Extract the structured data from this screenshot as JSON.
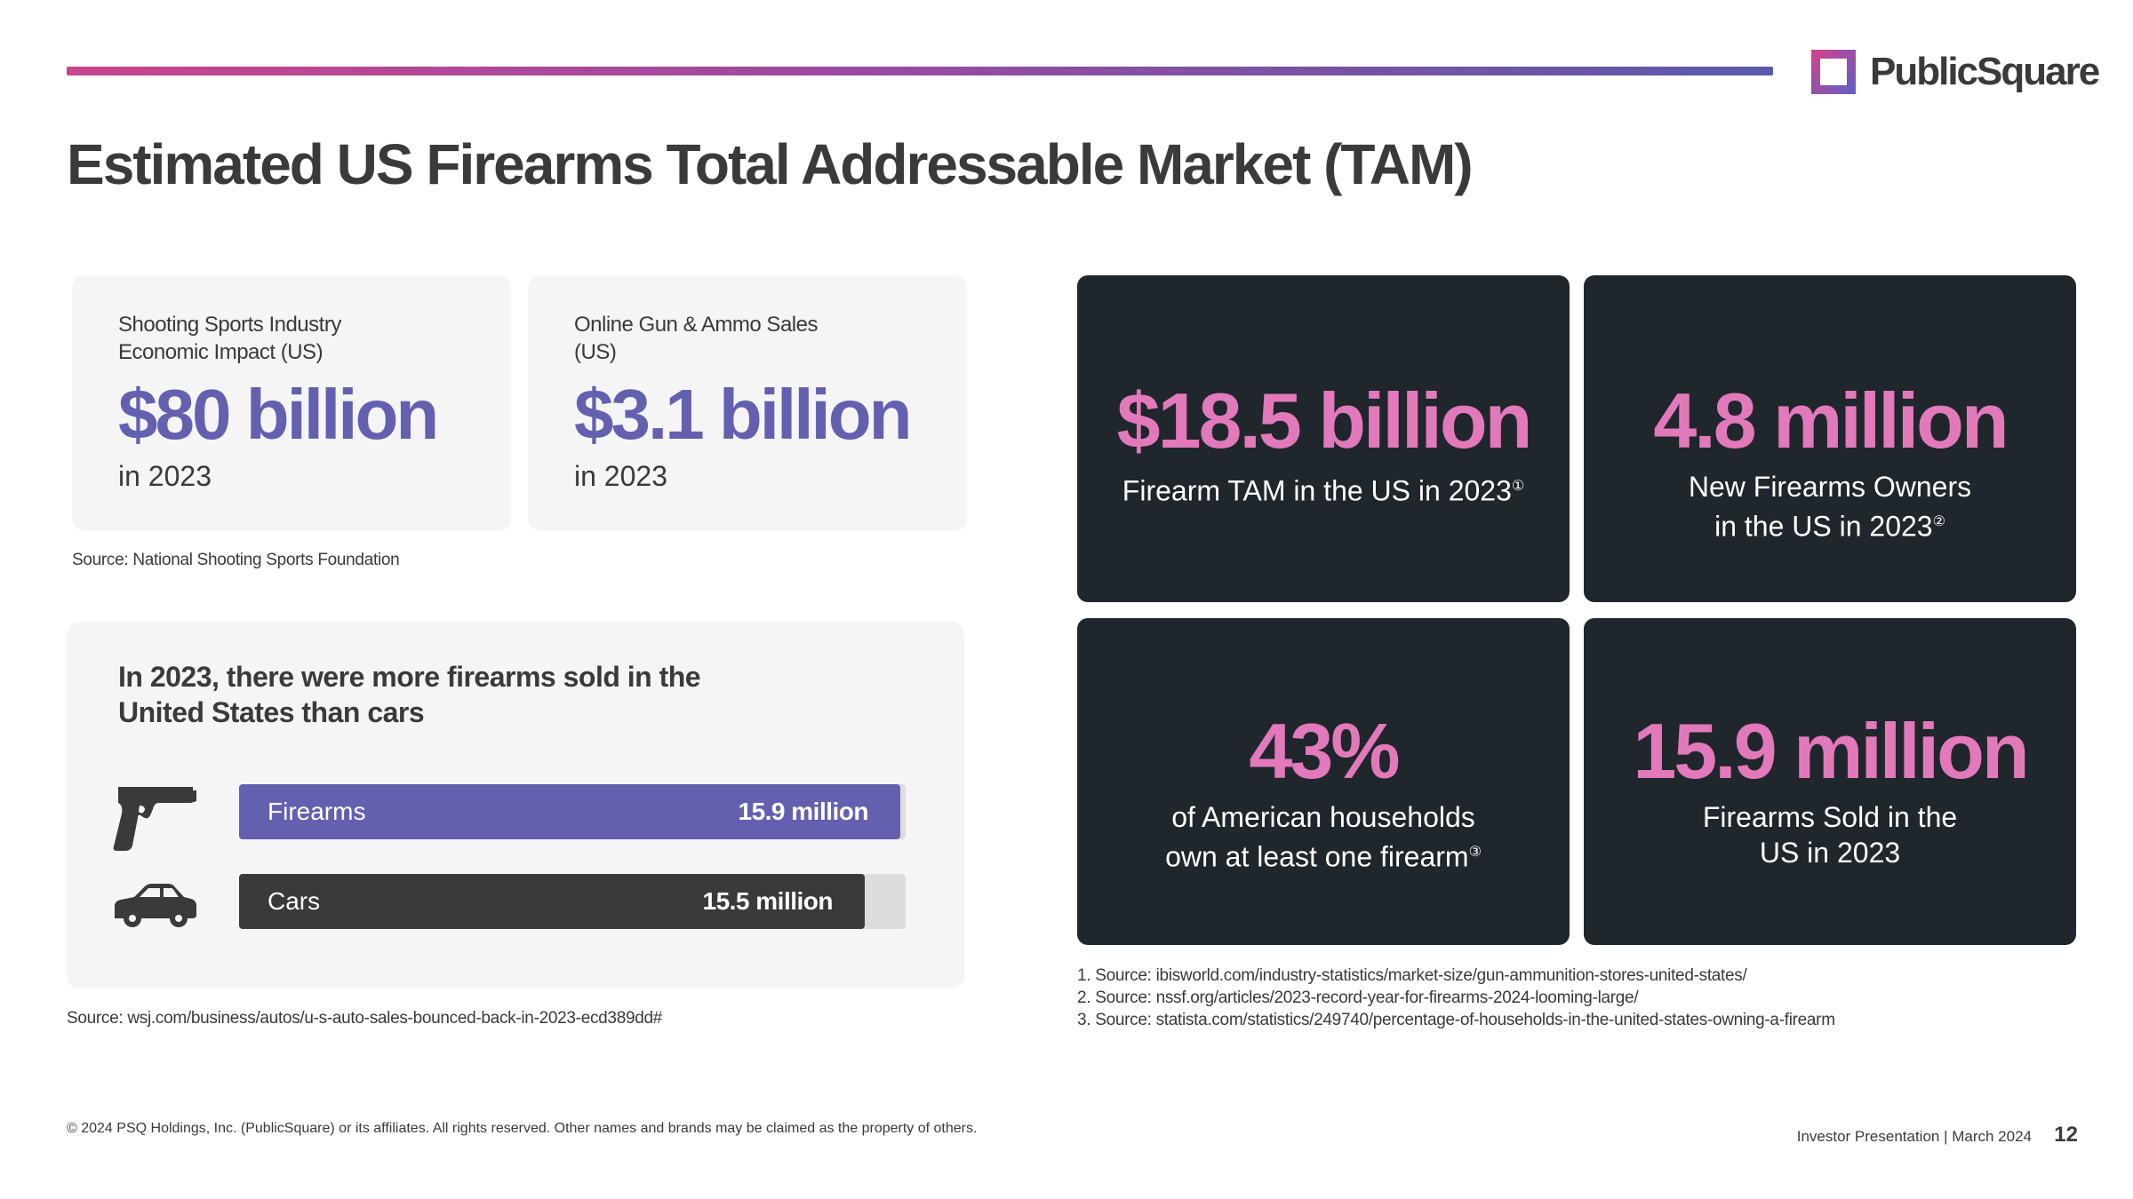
{
  "brand": {
    "name": "PublicSquare",
    "colors": {
      "purple": "#6460b0",
      "pink": "#e279ba",
      "dark": "#1f262c",
      "text": "#3a3a3c",
      "card_bg": "#f5f5f5",
      "bar_dark": "#3a3a3c"
    }
  },
  "title": "Estimated US Firearms Total Addressable Market (TAM)",
  "stat_cards": [
    {
      "label": "Shooting Sports Industry Economic Impact (US)",
      "value": "$80 billion",
      "year": "in 2023"
    },
    {
      "label": "Online Gun & Ammo Sales (US)",
      "value": "$3.1 billion",
      "year": "in 2023"
    }
  ],
  "stat_source": "Source: National Shooting Sports Foundation",
  "comparison": {
    "heading": "In 2023, there were more firearms sold in the United States than cars",
    "max": 15.9,
    "rows": [
      {
        "name": "Firearms",
        "value_text": "15.9 million",
        "value": 15.9,
        "icon": "pistol-icon",
        "color": "#6460b0"
      },
      {
        "name": "Cars",
        "value_text": "15.5 million",
        "value": 15.5,
        "icon": "car-icon",
        "color": "#3a3a3c"
      }
    ],
    "source": "Source: wsj.com/business/autos/u-s-auto-sales-bounced-back-in-2023-ecd389dd#"
  },
  "highlights": [
    {
      "value": "$18.5 billion",
      "line1": "Firearm TAM in the US in 2023",
      "ref": "①",
      "line2": ""
    },
    {
      "value": "4.8 million",
      "line1": "New Firearms Owners",
      "line2": "in the US in 2023",
      "ref": "②"
    },
    {
      "value": "43%",
      "line1": "of American households",
      "line2": "own at least one firearm",
      "ref": "③"
    },
    {
      "value": "15.9 million",
      "line1": "Firearms Sold in the",
      "line2": "US in 2023",
      "ref": ""
    }
  ],
  "sources": [
    "1.  Source: ibisworld.com/industry-statistics/market-size/gun-ammunition-stores-united-states/",
    "2. Source: nssf.org/articles/2023-record-year-for-firearms-2024-looming-large/",
    "3. Source: statista.com/statistics/249740/percentage-of-households-in-the-united-states-owning-a-firearm"
  ],
  "footer": {
    "copyright": "© 2024 PSQ Holdings, Inc. (PublicSquare) or its affiliates. All rights reserved. Other names and brands may be claimed as the property of others.",
    "label": "Investor Presentation | March 2024",
    "page": "12"
  }
}
